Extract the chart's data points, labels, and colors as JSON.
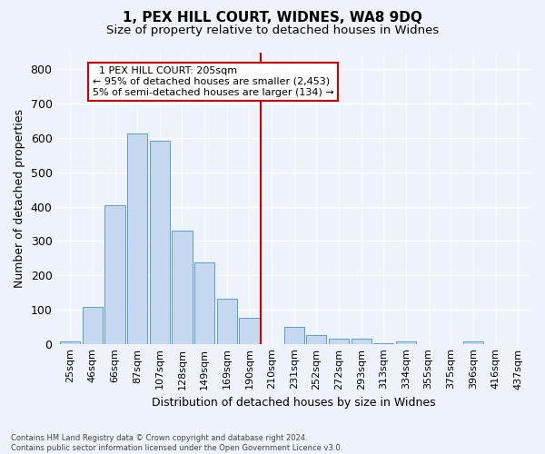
{
  "title1": "1, PEX HILL COURT, WIDNES, WA8 9DQ",
  "title2": "Size of property relative to detached houses in Widnes",
  "xlabel": "Distribution of detached houses by size in Widnes",
  "ylabel": "Number of detached properties",
  "footnote": "Contains HM Land Registry data © Crown copyright and database right 2024.\nContains public sector information licensed under the Open Government Licence v3.0.",
  "bar_labels": [
    "25sqm",
    "46sqm",
    "66sqm",
    "87sqm",
    "107sqm",
    "128sqm",
    "149sqm",
    "169sqm",
    "190sqm",
    "210sqm",
    "231sqm",
    "252sqm",
    "272sqm",
    "293sqm",
    "313sqm",
    "334sqm",
    "355sqm",
    "375sqm",
    "396sqm",
    "416sqm",
    "437sqm"
  ],
  "bar_values": [
    7,
    107,
    405,
    612,
    592,
    330,
    237,
    132,
    77,
    0,
    50,
    25,
    14,
    16,
    3,
    6,
    0,
    0,
    8,
    0,
    0
  ],
  "bar_color": "#c5d8f0",
  "bar_edge_color": "#5b9bd5",
  "vline_x": 9.0,
  "vline_color": "#cc0000",
  "annotation_text": "  1 PEX HILL COURT: 205sqm\n← 95% of detached houses are smaller (2,453)\n5% of semi-detached houses are larger (134) →",
  "annotation_box_color": "#ffffff",
  "annotation_box_edge_color": "#cc0000",
  "ylim": [
    0,
    850
  ],
  "yticks": [
    0,
    100,
    200,
    300,
    400,
    500,
    600,
    700,
    800
  ],
  "background_color": "#eef2fa",
  "grid_color": "#ffffff",
  "title1_fontsize": 11,
  "title2_fontsize": 9.5,
  "tick_fontsize": 8,
  "ylabel_fontsize": 9,
  "xlabel_fontsize": 9,
  "annot_fontsize": 8
}
